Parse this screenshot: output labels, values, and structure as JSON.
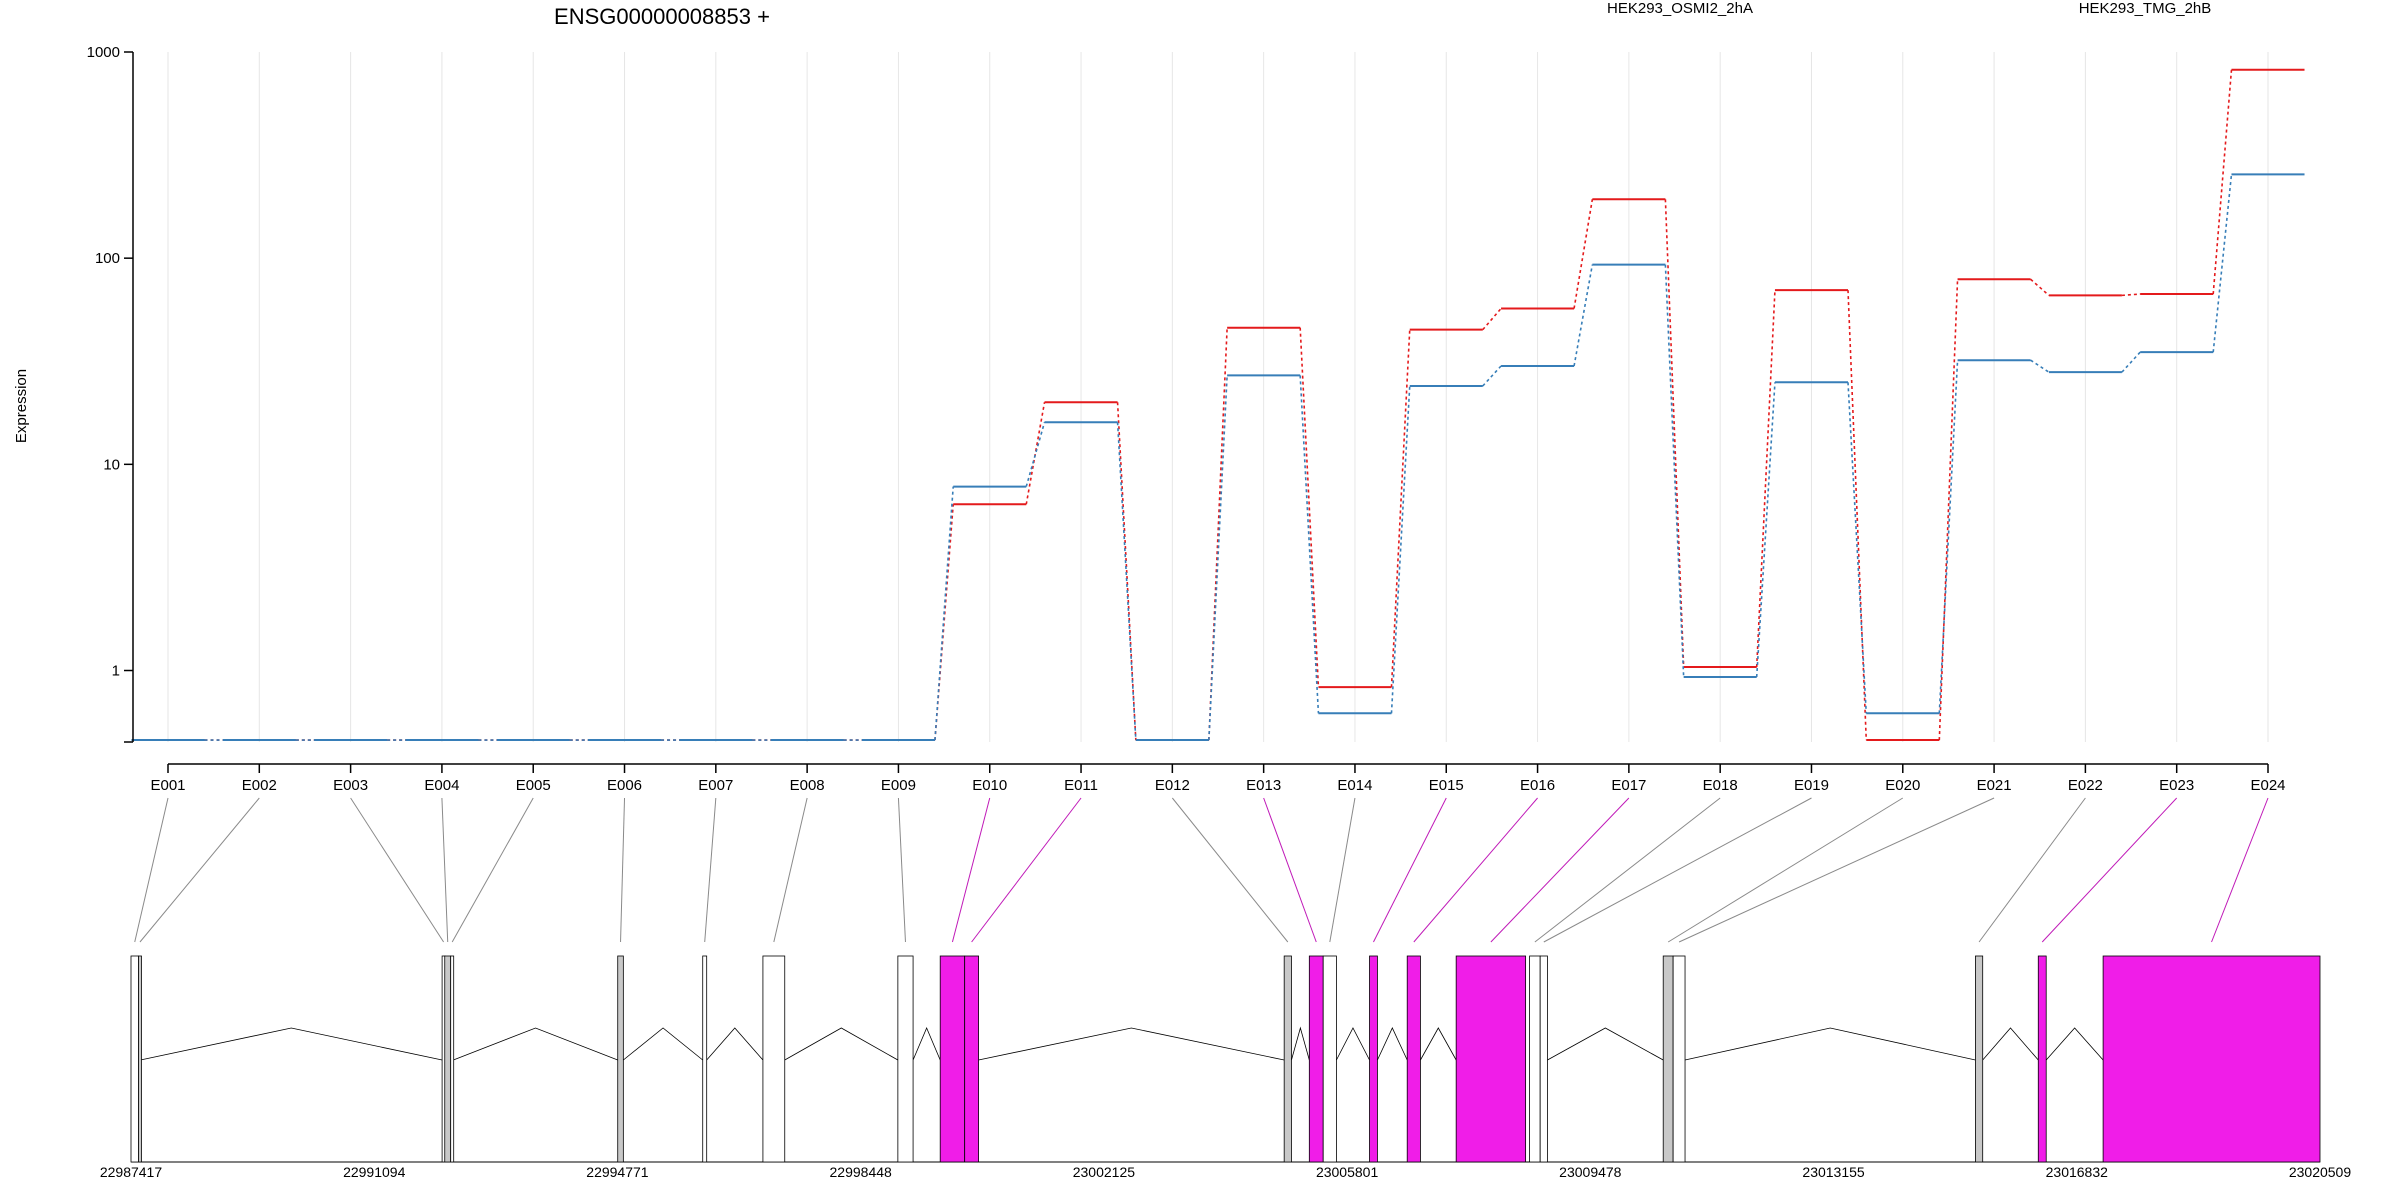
{
  "chart_data": {
    "type": "line",
    "title": "ENSG00000008853 +",
    "ylabel": "Expression",
    "xlabel": "",
    "yscale": "log",
    "ylim": [
      0.45,
      1000
    ],
    "ytick_values": [
      1,
      10,
      100,
      1000
    ],
    "ytick_labels": [
      "1",
      "10",
      "100",
      "1000"
    ],
    "grid": "vertical",
    "legend_position": "top-right",
    "categories": [
      "E001",
      "E002",
      "E003",
      "E004",
      "E005",
      "E006",
      "E007",
      "E008",
      "E009",
      "E010",
      "E011",
      "E012",
      "E013",
      "E014",
      "E015",
      "E016",
      "E017",
      "E018",
      "E019",
      "E020",
      "E021",
      "E022",
      "E023",
      "E024"
    ],
    "series": [
      {
        "name": "HEK293_OSMI2_2hA",
        "color": "#e41a1c",
        "values": [
          0.46,
          0.46,
          0.46,
          0.46,
          0.46,
          0.46,
          0.46,
          0.46,
          0.46,
          6.4,
          20,
          0.46,
          46,
          0.83,
          45,
          57,
          193,
          1.04,
          70,
          0.46,
          79,
          66,
          67,
          820
        ]
      },
      {
        "name": "HEK293_TMG_2hB",
        "color": "#377eb8",
        "values": [
          0.46,
          0.46,
          0.46,
          0.46,
          0.46,
          0.46,
          0.46,
          0.46,
          0.46,
          7.8,
          16,
          0.46,
          27,
          0.62,
          24,
          30,
          93,
          0.93,
          25,
          0.62,
          32,
          28,
          35,
          255
        ]
      }
    ],
    "genomic_axis": {
      "start": 22987417,
      "end": 23020509,
      "tick_labels": [
        "22987417",
        "22991094",
        "22994771",
        "22998448",
        "23002125",
        "23005801",
        "23009478",
        "23013155",
        "23016832",
        "23020509"
      ]
    },
    "exons": [
      {
        "id": "E001",
        "start": 22987417,
        "end": 22987530,
        "significant": false
      },
      {
        "id": "E002",
        "start": 22987530,
        "end": 22987560,
        "significant": false
      },
      {
        "id": "E003",
        "start": 22992120,
        "end": 22992160,
        "significant": false
      },
      {
        "id": "E004",
        "start": 22992160,
        "end": 22992250,
        "significant": false
      },
      {
        "id": "E005",
        "start": 22992250,
        "end": 22992290,
        "significant": false
      },
      {
        "id": "E006",
        "start": 22994775,
        "end": 22994860,
        "significant": false
      },
      {
        "id": "E007",
        "start": 22996060,
        "end": 22996120,
        "significant": false
      },
      {
        "id": "E008",
        "start": 22996970,
        "end": 22997300,
        "significant": false
      },
      {
        "id": "E009",
        "start": 22999010,
        "end": 22999240,
        "significant": false
      },
      {
        "id": "E010",
        "start": 22999650,
        "end": 23000020,
        "significant": true
      },
      {
        "id": "E011",
        "start": 23000020,
        "end": 23000230,
        "significant": true
      },
      {
        "id": "E012",
        "start": 23004850,
        "end": 23004960,
        "significant": false
      },
      {
        "id": "E013",
        "start": 23005230,
        "end": 23005440,
        "significant": true
      },
      {
        "id": "E014",
        "start": 23005440,
        "end": 23005640,
        "significant": false
      },
      {
        "id": "E015",
        "start": 23006140,
        "end": 23006260,
        "significant": true
      },
      {
        "id": "E016",
        "start": 23006710,
        "end": 23006910,
        "significant": true
      },
      {
        "id": "E017",
        "start": 23007450,
        "end": 23008500,
        "significant": true
      },
      {
        "id": "E018",
        "start": 23008560,
        "end": 23008720,
        "significant": false
      },
      {
        "id": "E019",
        "start": 23008720,
        "end": 23008830,
        "significant": false
      },
      {
        "id": "E020",
        "start": 23010580,
        "end": 23010730,
        "significant": false
      },
      {
        "id": "E021",
        "start": 23010730,
        "end": 23010910,
        "significant": false
      },
      {
        "id": "E022",
        "start": 23015300,
        "end": 23015410,
        "significant": false
      },
      {
        "id": "E023",
        "start": 23016250,
        "end": 23016370,
        "significant": true
      },
      {
        "id": "E024",
        "start": 23017230,
        "end": 23020509,
        "significant": true
      }
    ],
    "significant_color": "#f01de8",
    "non_significant_colors": [
      "#ffffff",
      "#c8c8c8"
    ]
  }
}
